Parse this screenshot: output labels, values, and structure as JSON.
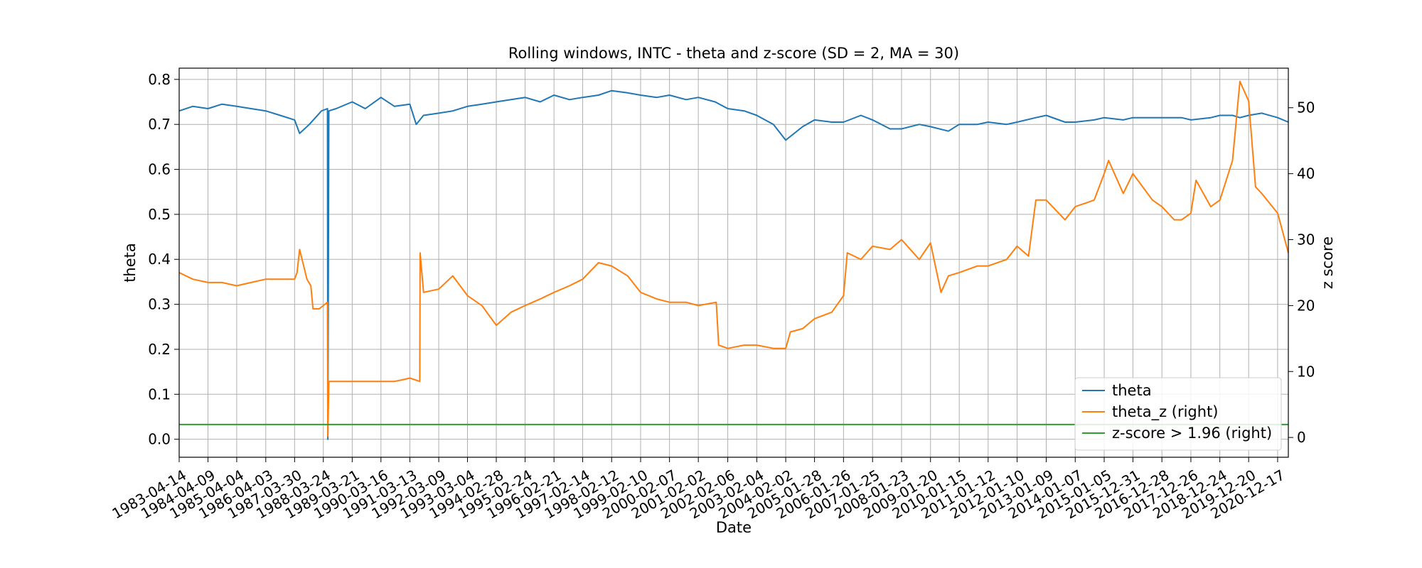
{
  "chart_data": {
    "type": "line",
    "title": "Rolling windows, INTC - theta and z-score (SD = 2, MA = 30)",
    "xlabel": "Date",
    "ylabel": "theta",
    "ylabel_right": "z score",
    "xlim": [
      "1983-04-14",
      "2021-04-30"
    ],
    "ylim": [
      -0.04,
      0.825
    ],
    "ylim_right": [
      -3.0,
      56.0
    ],
    "grid": true,
    "legend_position": "lower-right",
    "x_tick_labels": [
      "1983-04-14",
      "1984-04-09",
      "1985-04-04",
      "1986-04-03",
      "1987-03-30",
      "1988-03-24",
      "1989-03-21",
      "1990-03-16",
      "1991-03-13",
      "1992-03-09",
      "1993-03-04",
      "1994-02-28",
      "1995-02-24",
      "1996-02-21",
      "1997-02-14",
      "1998-02-12",
      "1999-02-10",
      "2000-02-07",
      "2001-02-02",
      "2002-02-06",
      "2003-02-04",
      "2004-02-02",
      "2005-01-28",
      "2006-01-26",
      "2007-01-25",
      "2008-01-23",
      "2009-01-20",
      "2010-01-15",
      "2011-01-12",
      "2012-01-10",
      "2013-01-09",
      "2014-01-07",
      "2015-01-05",
      "2015-12-31",
      "2016-12-28",
      "2017-12-26",
      "2018-12-24",
      "2019-12-20",
      "2020-12-17"
    ],
    "y_ticks_left": [
      0.0,
      0.1,
      0.2,
      0.3,
      0.4,
      0.5,
      0.6,
      0.7,
      0.8
    ],
    "y_tick_labels_left": [
      "0.0",
      "0.1",
      "0.2",
      "0.3",
      "0.4",
      "0.5",
      "0.6",
      "0.7",
      "0.8"
    ],
    "y_ticks_right": [
      0,
      10,
      20,
      30,
      40,
      50
    ],
    "y_tick_labels_right": [
      "0",
      "10",
      "20",
      "30",
      "40",
      "50"
    ],
    "series": [
      {
        "name": "theta",
        "axis": "left",
        "color": "#1f77b4",
        "x": [
          "1983-04-14",
          "1983-10-01",
          "1984-04-09",
          "1984-10-01",
          "1985-04-04",
          "1985-10-01",
          "1986-04-03",
          "1986-10-01",
          "1987-03-30",
          "1987-06-01",
          "1987-10-01",
          "1988-03-01",
          "1988-05-15",
          "1988-05-20",
          "1988-06-01",
          "1988-09-01",
          "1989-03-21",
          "1989-09-01",
          "1990-03-16",
          "1990-09-01",
          "1991-03-13",
          "1991-06-01",
          "1991-09-01",
          "1992-03-09",
          "1992-09-01",
          "1993-03-04",
          "1993-09-01",
          "1994-02-28",
          "1994-09-01",
          "1995-02-24",
          "1995-09-01",
          "1996-02-21",
          "1996-09-01",
          "1997-02-14",
          "1997-09-01",
          "1998-02-12",
          "1998-09-01",
          "1999-02-10",
          "1999-09-01",
          "2000-02-07",
          "2000-09-01",
          "2001-02-02",
          "2001-09-01",
          "2002-02-06",
          "2002-09-01",
          "2003-02-04",
          "2003-09-01",
          "2004-02-02",
          "2004-09-01",
          "2005-01-28",
          "2005-09-01",
          "2006-01-26",
          "2006-09-01",
          "2007-01-25",
          "2007-09-01",
          "2008-01-23",
          "2008-09-01",
          "2009-01-20",
          "2009-09-01",
          "2010-01-15",
          "2010-09-01",
          "2011-01-12",
          "2011-09-01",
          "2012-01-10",
          "2012-09-01",
          "2013-01-09",
          "2013-09-01",
          "2014-01-07",
          "2014-09-01",
          "2015-01-05",
          "2015-09-01",
          "2015-12-31",
          "2016-09-01",
          "2016-12-28",
          "2017-09-01",
          "2017-12-26",
          "2018-09-01",
          "2018-12-24",
          "2019-06-01",
          "2019-09-01",
          "2019-12-20",
          "2020-06-01",
          "2020-12-17",
          "2021-04-30"
        ],
        "values": [
          0.73,
          0.74,
          0.735,
          0.745,
          0.74,
          0.735,
          0.73,
          0.72,
          0.71,
          0.68,
          0.7,
          0.73,
          0.735,
          0.0,
          0.73,
          0.735,
          0.75,
          0.735,
          0.76,
          0.74,
          0.745,
          0.7,
          0.72,
          0.725,
          0.73,
          0.74,
          0.745,
          0.75,
          0.755,
          0.76,
          0.75,
          0.765,
          0.755,
          0.76,
          0.765,
          0.775,
          0.77,
          0.765,
          0.76,
          0.765,
          0.755,
          0.76,
          0.75,
          0.735,
          0.73,
          0.72,
          0.7,
          0.665,
          0.695,
          0.71,
          0.705,
          0.705,
          0.72,
          0.71,
          0.69,
          0.69,
          0.7,
          0.695,
          0.685,
          0.7,
          0.7,
          0.705,
          0.7,
          0.705,
          0.715,
          0.72,
          0.705,
          0.705,
          0.71,
          0.715,
          0.71,
          0.715,
          0.715,
          0.715,
          0.715,
          0.71,
          0.715,
          0.72,
          0.72,
          0.715,
          0.72,
          0.725,
          0.715,
          0.705
        ]
      },
      {
        "name": "theta_z (right)",
        "axis": "right",
        "color": "#ff7f0e",
        "x": [
          "1983-04-14",
          "1983-10-01",
          "1984-04-09",
          "1984-10-01",
          "1985-04-04",
          "1985-10-01",
          "1986-04-03",
          "1986-10-01",
          "1987-03-30",
          "1987-04-30",
          "1987-06-01",
          "1987-09-01",
          "1987-10-20",
          "1987-11-15",
          "1988-02-01",
          "1988-03-24",
          "1988-05-15",
          "1988-05-20",
          "1988-06-01",
          "1988-09-01",
          "1989-03-21",
          "1989-09-01",
          "1990-03-16",
          "1990-09-01",
          "1991-01-01",
          "1991-03-13",
          "1991-07-15",
          "1991-07-20",
          "1991-09-01",
          "1992-03-09",
          "1992-09-01",
          "1993-03-04",
          "1993-09-01",
          "1994-02-28",
          "1994-09-01",
          "1995-02-24",
          "1995-09-01",
          "1996-02-21",
          "1996-09-01",
          "1997-02-14",
          "1997-09-01",
          "1998-02-12",
          "1998-09-01",
          "1999-02-10",
          "1999-09-01",
          "2000-02-07",
          "2000-09-01",
          "2001-02-02",
          "2001-09-15",
          "2001-10-15",
          "2002-02-06",
          "2002-09-01",
          "2003-02-04",
          "2003-09-01",
          "2004-02-02",
          "2004-04-01",
          "2004-09-01",
          "2005-01-28",
          "2005-09-01",
          "2006-01-26",
          "2006-03-15",
          "2006-09-01",
          "2007-01-25",
          "2007-09-01",
          "2008-01-23",
          "2008-09-01",
          "2009-01-20",
          "2009-06-01",
          "2009-09-01",
          "2010-01-15",
          "2010-09-01",
          "2011-01-12",
          "2011-09-01",
          "2012-01-10",
          "2012-06-01",
          "2012-09-01",
          "2013-01-09",
          "2013-09-01",
          "2014-01-07",
          "2014-09-01",
          "2015-01-05",
          "2015-03-01",
          "2015-09-01",
          "2015-12-31",
          "2016-09-01",
          "2016-12-28",
          "2017-06-01",
          "2017-09-01",
          "2017-12-26",
          "2018-03-01",
          "2018-09-01",
          "2018-12-24",
          "2019-03-01",
          "2019-06-01",
          "2019-09-01",
          "2019-12-20",
          "2020-03-15",
          "2020-06-01",
          "2020-12-17",
          "2021-04-30"
        ],
        "values": [
          25,
          24,
          23.5,
          23.5,
          23,
          23.5,
          24,
          24,
          24,
          25,
          28.5,
          24,
          23,
          19.5,
          19.5,
          20,
          20.5,
          0.2,
          8.5,
          8.5,
          8.5,
          8.5,
          8.5,
          8.5,
          8.8,
          9,
          8.5,
          28,
          22,
          22.5,
          24.5,
          21.5,
          20,
          17,
          19,
          20,
          21,
          22,
          23,
          24,
          26.5,
          26,
          24.5,
          22,
          21,
          20.5,
          20.5,
          20,
          20.5,
          14,
          13.5,
          14,
          14,
          13.5,
          13.5,
          16,
          16.5,
          18,
          19,
          21.5,
          28,
          27,
          29,
          28.5,
          30,
          27,
          29.5,
          22,
          24.5,
          25,
          26,
          26,
          27,
          29,
          27.5,
          36,
          36,
          33,
          35,
          36,
          40,
          42,
          37,
          40,
          36,
          35,
          33,
          33,
          34,
          39,
          35,
          36,
          38.5,
          42,
          54,
          51,
          38,
          37,
          34,
          28
        ]
      },
      {
        "name": "z-score > 1.96 (right)",
        "axis": "right",
        "color": "#2ca02c",
        "x": [
          "1983-04-14",
          "2021-04-30"
        ],
        "values": [
          1.96,
          1.96
        ]
      }
    ]
  }
}
